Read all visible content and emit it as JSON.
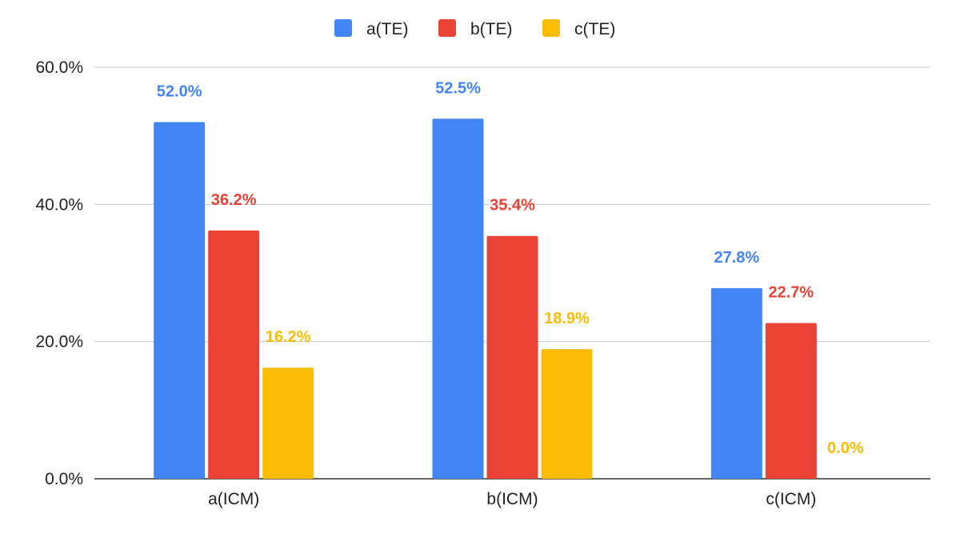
{
  "chart_data": {
    "type": "bar",
    "title": "",
    "xlabel": "",
    "ylabel": "",
    "categories": [
      "a(ICM)",
      "b(ICM)",
      "c(ICM)"
    ],
    "series": [
      {
        "name": "a(TE)",
        "color": "#4285F4",
        "values": [
          52.0,
          52.5,
          27.8
        ],
        "labels": [
          "52.0%",
          "52.5%",
          "27.8%"
        ]
      },
      {
        "name": "b(TE)",
        "color": "#EA4335",
        "values": [
          36.2,
          35.4,
          22.7
        ],
        "labels": [
          "36.2%",
          "35.4%",
          "22.7%"
        ]
      },
      {
        "name": "c(TE)",
        "color": "#FBBC04",
        "values": [
          16.2,
          18.9,
          0.0
        ],
        "labels": [
          "16.2%",
          "18.9%",
          "0.0%"
        ]
      }
    ],
    "ylim": [
      0,
      60
    ],
    "yticks": [
      0,
      20,
      40,
      60
    ],
    "ytick_labels": [
      "0.0%",
      "20.0%",
      "40.0%",
      "60.0%"
    ],
    "grid": true,
    "legend_position": "top-center"
  }
}
